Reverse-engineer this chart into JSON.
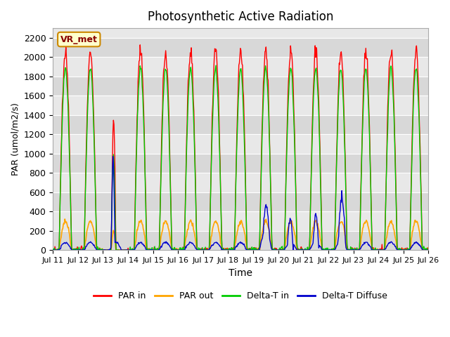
{
  "title": "Photosynthetic Active Radiation",
  "ylabel": "PAR (umol/m2/s)",
  "xlabel": "Time",
  "label_box": "VR_met",
  "ylim": [
    0,
    2300
  ],
  "yticks": [
    0,
    200,
    400,
    600,
    800,
    1000,
    1200,
    1400,
    1600,
    1800,
    2000,
    2200
  ],
  "xtick_labels": [
    "Jul 11",
    "Jul 12",
    "Jul 13",
    "Jul 14",
    "Jul 15",
    "Jul 16",
    "Jul 17",
    "Jul 18",
    "Jul 19",
    "Jul 20",
    "Jul 21",
    "Jul 22",
    "Jul 23",
    "Jul 24",
    "Jul 25",
    "Jul 26"
  ],
  "colors": {
    "par_in": "#ff0000",
    "par_out": "#ffa500",
    "delta_t_in": "#00cc00",
    "delta_t_diffuse": "#0000cc",
    "background": "#e8e8e8",
    "stripe_light": "#d8d8d8",
    "label_box_bg": "#ffffcc",
    "label_box_border": "#cc8800",
    "label_box_text": "#880000"
  },
  "legend_labels": [
    "PAR in",
    "PAR out",
    "Delta-T in",
    "Delta-T Diffuse"
  ]
}
